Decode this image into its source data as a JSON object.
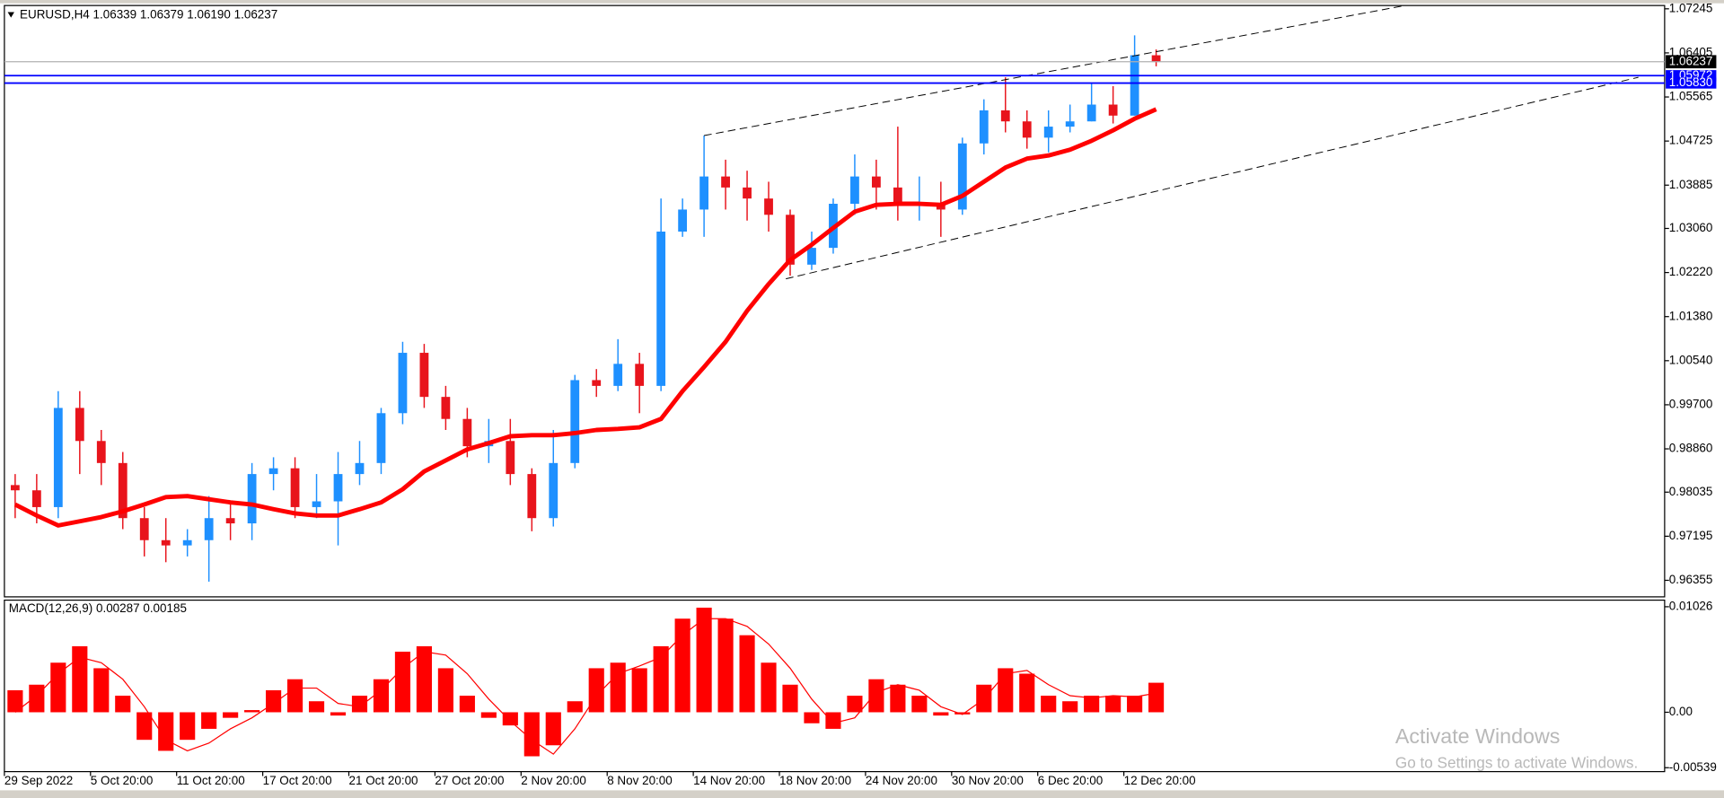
{
  "chart_data": [
    {
      "type": "candlestick",
      "title": "EURUSD,H4  1.06339 1.06379 1.06190 1.06237",
      "categories": [
        "29 Sep 2022",
        null,
        null,
        null,
        "5 Oct 20:00",
        null,
        null,
        null,
        "11 Oct 20:00",
        null,
        null,
        null,
        "17 Oct 20:00",
        null,
        null,
        null,
        "21 Oct 20:00",
        null,
        null,
        null,
        "27 Oct 20:00",
        null,
        null,
        null,
        "2 Nov 20:00",
        null,
        null,
        null,
        "8 Nov 20:00",
        null,
        null,
        null,
        "14 Nov 20:00",
        null,
        null,
        null,
        "18 Nov 20:00",
        null,
        null,
        null,
        "24 Nov 20:00",
        null,
        null,
        null,
        "30 Nov 20:00",
        null,
        null,
        null,
        "6 Dec 20:00",
        null,
        null,
        null,
        "12 Dec 20:00",
        null
      ],
      "open": [
        0.9817,
        0.9807,
        0.9775,
        0.9964,
        0.9901,
        0.9859,
        0.9754,
        0.9712,
        0.9702,
        0.9712,
        0.9754,
        0.9744,
        0.9838,
        0.9849,
        0.9775,
        0.9786,
        0.9838,
        0.9859,
        0.9954,
        1.0069,
        0.9985,
        0.9943,
        0.9891,
        0.9901,
        0.9838,
        0.9754,
        0.9859,
        1.0017,
        1.0006,
        1.0048,
        1.0006,
        1.03,
        1.0342,
        1.0405,
        1.0384,
        1.0363,
        1.0332,
        1.0237,
        1.0269,
        1.0353,
        1.0405,
        1.0384,
        1.0353,
        1.0353,
        1.0342,
        1.0468,
        1.0531,
        1.051,
        1.0479,
        1.05,
        1.051,
        1.0542,
        1.0521,
        1.0636
      ],
      "high": [
        0.9838,
        0.9838,
        0.9996,
        0.9996,
        0.9922,
        0.988,
        0.9775,
        0.9754,
        0.9733,
        0.9796,
        0.9786,
        0.9859,
        0.987,
        0.987,
        0.9838,
        0.988,
        0.9901,
        0.9964,
        1.009,
        1.0086,
        1.0006,
        0.9964,
        0.9943,
        0.9943,
        0.9849,
        0.9922,
        1.0027,
        1.0038,
        1.0095,
        1.0069,
        1.0363,
        1.0363,
        1.0483,
        1.0437,
        1.0416,
        1.0395,
        1.0342,
        1.03,
        1.0363,
        1.0447,
        1.0437,
        1.05,
        1.0405,
        1.0395,
        1.0479,
        1.0552,
        1.0594,
        1.0531,
        1.0531,
        1.0542,
        1.0584,
        1.0577,
        1.0674,
        1.0647
      ],
      "low": [
        0.9754,
        0.9744,
        0.9754,
        0.9838,
        0.9817,
        0.9733,
        0.9681,
        0.967,
        0.9681,
        0.9633,
        0.9712,
        0.9712,
        0.9807,
        0.9754,
        0.9754,
        0.9702,
        0.9817,
        0.9838,
        0.9933,
        0.9964,
        0.9922,
        0.987,
        0.9859,
        0.9817,
        0.9729,
        0.9738,
        0.9849,
        0.9985,
        0.9996,
        0.9954,
        0.9996,
        1.029,
        1.029,
        1.0342,
        1.0321,
        1.03,
        1.0216,
        1.0227,
        1.0258,
        1.0332,
        1.0342,
        1.0321,
        1.0321,
        1.029,
        1.0332,
        1.0447,
        1.0489,
        1.0458,
        1.0451,
        1.0489,
        1.051,
        1.0506,
        1.0521,
        1.0615
      ],
      "close": [
        0.9807,
        0.9775,
        0.9964,
        0.9901,
        0.9859,
        0.9754,
        0.9712,
        0.9702,
        0.9712,
        0.9754,
        0.9744,
        0.9838,
        0.9849,
        0.9775,
        0.9786,
        0.9838,
        0.9859,
        0.9954,
        1.0069,
        0.9985,
        0.9943,
        0.9891,
        0.9901,
        0.9838,
        0.9754,
        0.9859,
        1.0017,
        1.0006,
        1.0048,
        1.0006,
        1.03,
        1.0342,
        1.0405,
        1.0384,
        1.0363,
        1.0332,
        1.0237,
        1.0269,
        1.0353,
        1.0405,
        1.0384,
        1.0353,
        1.0353,
        1.0342,
        1.0468,
        1.0531,
        1.051,
        1.0479,
        1.05,
        1.051,
        1.0542,
        1.0521,
        1.0636,
        1.06237
      ],
      "up_color": "#1e90ff",
      "down_color": "#e8141c",
      "ma": {
        "color": "#ff0000",
        "values": [
          0.978,
          0.9759,
          0.974,
          0.9748,
          0.9756,
          0.9767,
          0.978,
          0.9794,
          0.9796,
          0.979,
          0.9784,
          0.978,
          0.9771,
          0.9763,
          0.9759,
          0.9759,
          0.9771,
          0.9784,
          0.9809,
          0.9843,
          0.9864,
          0.9885,
          0.9897,
          0.991,
          0.9912,
          0.9912,
          0.9916,
          0.9922,
          0.9924,
          0.9927,
          0.9943,
          0.9996,
          1.0042,
          1.009,
          1.0149,
          1.02,
          1.0246,
          1.0275,
          1.0307,
          1.0338,
          1.0351,
          1.0353,
          1.0353,
          1.0351,
          1.0368,
          1.0395,
          1.0422,
          1.0439,
          1.0445,
          1.0456,
          1.0473,
          1.0493,
          1.0515,
          1.0533
        ]
      },
      "trendlines": [
        {
          "x": [
            32.0,
            64.6
          ],
          "y": [
            1.0483,
            1.0731
          ]
        },
        {
          "x": [
            35.8,
            75.4
          ],
          "y": [
            1.021,
            1.0594
          ]
        }
      ],
      "hlines": [
        {
          "value": 1.05972,
          "label": "1.05972",
          "color": "#0000ff"
        },
        {
          "value": 1.0583,
          "label": "1.05830",
          "color": "#0000ff"
        }
      ],
      "last_price": 1.06237,
      "ylim": [
        0.9604,
        1.07308
      ],
      "yticks": [
        1.07245,
        1.06405,
        1.05565,
        1.04725,
        1.03885,
        {
          "value": 1.0306,
          "label": "1.03060"
        },
        {
          "value": 1.0222,
          "label": "1.02220"
        },
        {
          "value": 1.0138,
          "label": "1.01380"
        },
        {
          "value": 1.0054,
          "label": "1.00540"
        },
        {
          "value": 0.997,
          "label": "0.99700"
        },
        {
          "value": 0.9886,
          "label": "0.98860"
        },
        0.98035,
        0.97195,
        0.96355
      ]
    },
    {
      "type": "bar",
      "title": "MACD(12,26,9) 0.00287 0.00185",
      "color": "#ff0000",
      "values": [
        0.00214,
        0.00268,
        0.00482,
        0.00642,
        0.00428,
        0.00161,
        -0.00268,
        -0.00375,
        -0.00268,
        -0.00161,
        -0.00054,
        0.00021,
        0.00214,
        0.00321,
        0.00107,
        -0.00032,
        0.00161,
        0.00321,
        0.00589,
        0.00642,
        0.00428,
        0.00161,
        -0.00054,
        -0.00128,
        -0.00428,
        -0.00321,
        0.00107,
        0.00428,
        0.00482,
        0.00428,
        0.00642,
        0.0091,
        0.01017,
        0.0091,
        0.00749,
        0.00482,
        0.00268,
        -0.00107,
        -0.00161,
        0.00161,
        0.00321,
        0.00268,
        0.00161,
        -0.00032,
        -0.00021,
        0.00268,
        0.00428,
        0.00375,
        0.00161,
        0.00107,
        0.00161,
        0.00161,
        0.00161,
        0.00287
      ],
      "signal": [
        0,
        0.00161,
        0.00375,
        0.00535,
        0.00482,
        0.00321,
        0.00054,
        -0.00268,
        -0.00375,
        -0.003,
        -0.00161,
        -0.00054,
        0.00086,
        0.00235,
        0.00235,
        0.00086,
        0.00054,
        0.00214,
        0.00428,
        0.00589,
        0.00556,
        0.00375,
        0.00128,
        -0.00086,
        -0.00268,
        -0.00407,
        -0.00161,
        0.00161,
        0.00375,
        0.0045,
        0.00535,
        0.00749,
        0.0091,
        0.0091,
        0.00835,
        0.00663,
        0.00428,
        0.00128,
        -0.00107,
        -0.00054,
        0.00193,
        0.00268,
        0.00214,
        0.00054,
        -0.00021,
        0.00128,
        0.00375,
        0.00407,
        0.00268,
        0.00161,
        0.00139,
        0.00161,
        0.0015,
        0.00185
      ],
      "ylim": [
        -0.00577,
        0.0109
      ],
      "yticks": [
        0.01026,
        {
          "value": 0,
          "label": "0.00"
        },
        -0.00539
      ]
    }
  ],
  "watermark": {
    "title": "Activate Windows",
    "subtitle": "Go to Settings to activate Windows."
  }
}
